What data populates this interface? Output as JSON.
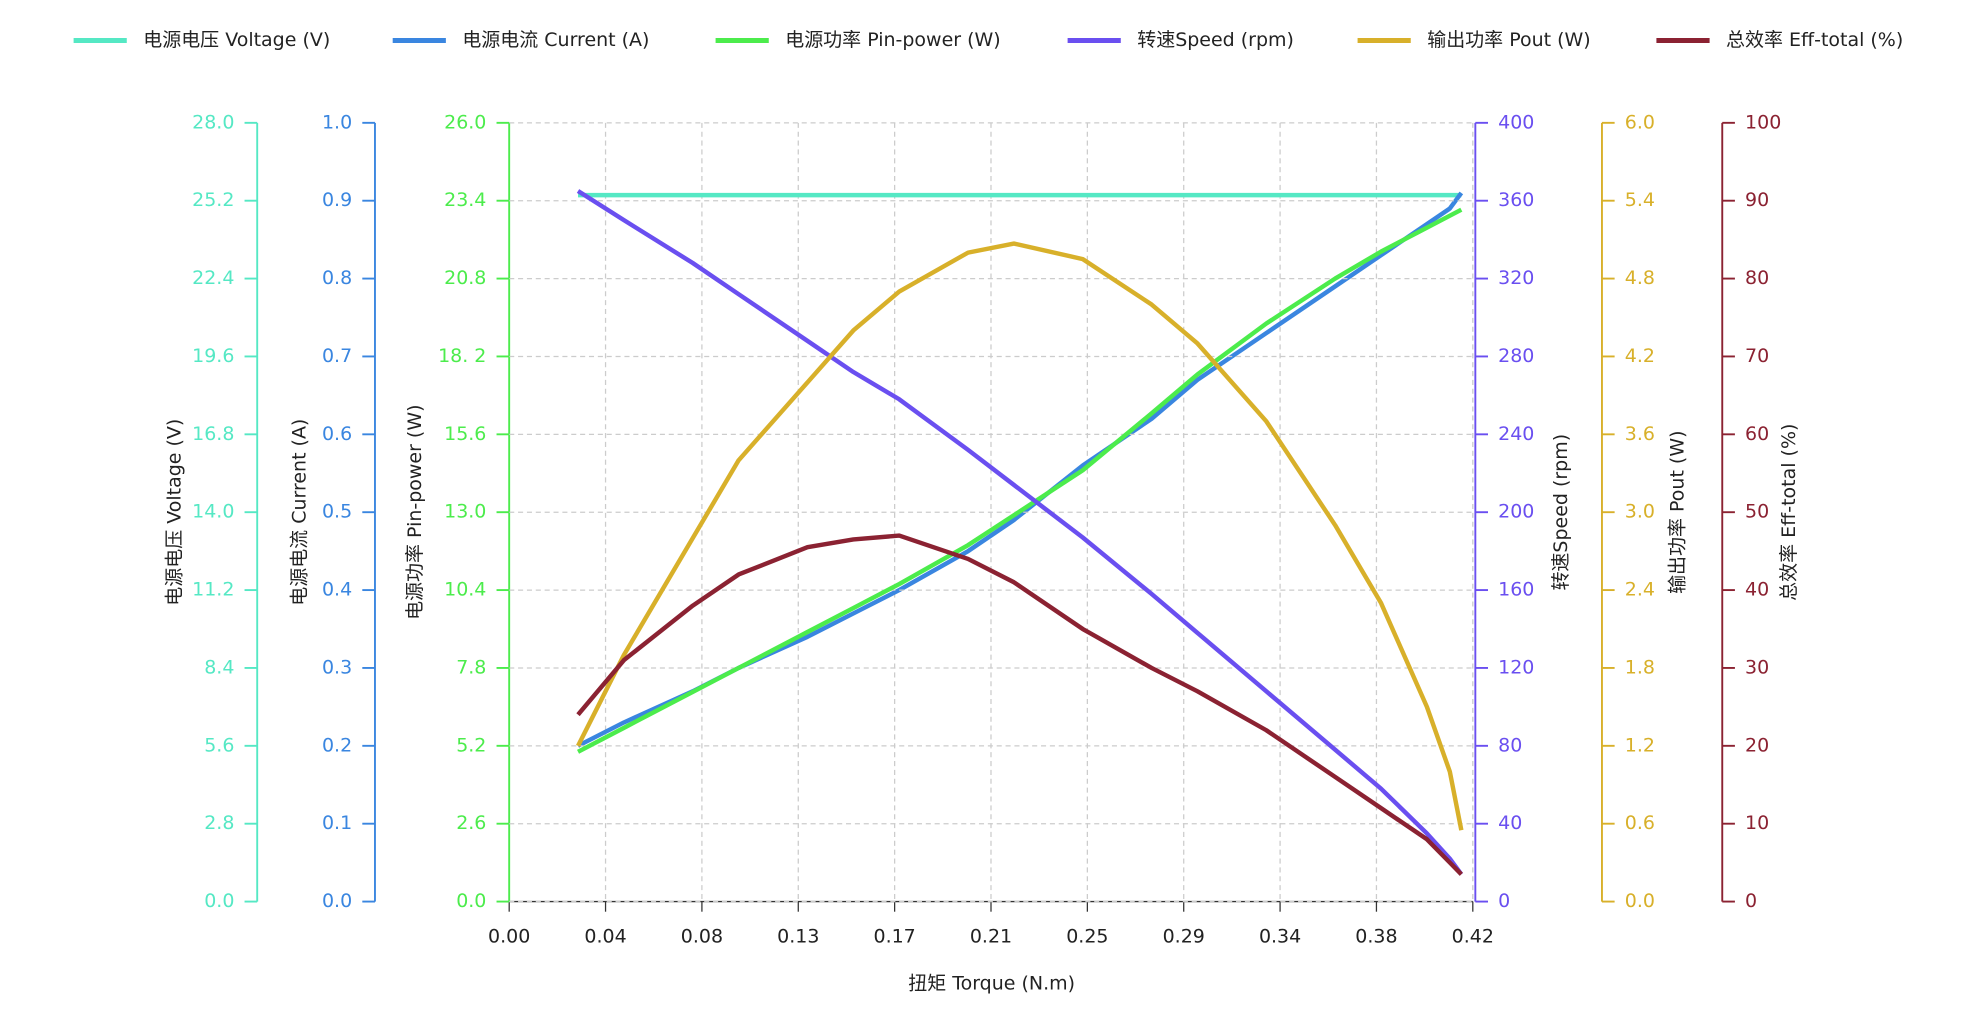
{
  "chart_data": {
    "type": "line",
    "xlabel": "扭矩 Torque (N.m)",
    "xlim": [
      0,
      0.42
    ],
    "xticks": [
      {
        "value": 0,
        "label": "0.00"
      },
      {
        "value": 0.042,
        "label": "0.04"
      },
      {
        "value": 0.084,
        "label": "0.08"
      },
      {
        "value": 0.126,
        "label": "0.13"
      },
      {
        "value": 0.168,
        "label": "0.17"
      },
      {
        "value": 0.21,
        "label": "0.21"
      },
      {
        "value": 0.252,
        "label": "0.25"
      },
      {
        "value": 0.294,
        "label": "0.29"
      },
      {
        "value": 0.336,
        "label": "0.34"
      },
      {
        "value": 0.378,
        "label": "0.38"
      },
      {
        "value": 0.42,
        "label": "0.42"
      }
    ],
    "grid": true,
    "x": [
      0.03,
      0.05,
      0.08,
      0.1,
      0.13,
      0.15,
      0.17,
      0.2,
      0.22,
      0.25,
      0.28,
      0.3,
      0.33,
      0.36,
      0.38,
      0.4,
      0.41,
      0.415
    ],
    "series": [
      {
        "name": "电源电压 Voltage (V)",
        "ylabel": "电源电压 Voltage (V)",
        "color": "#55e8c4",
        "ylim": [
          0,
          28
        ],
        "yticks": [
          {
            "value": 0,
            "label": "0.0"
          },
          2.8,
          5.6,
          8.4,
          11.2,
          {
            "value": 14,
            "label": "14.0"
          },
          16.8,
          19.6,
          22.4,
          25.2,
          {
            "value": 28,
            "label": "28.0"
          }
        ],
        "values": [
          25.4,
          25.4,
          25.4,
          25.4,
          25.4,
          25.4,
          25.4,
          25.4,
          25.4,
          25.4,
          25.4,
          25.4,
          25.4,
          25.4,
          25.4,
          25.4,
          25.4,
          25.4
        ]
      },
      {
        "name": "电源电流 Current (A)",
        "ylabel": "电源电流 Current (A)",
        "color": "#3a86e0",
        "ylim": [
          0,
          1
        ],
        "yticks": [
          {
            "value": 0,
            "label": "0.0"
          },
          0.1,
          0.2,
          0.3,
          0.4,
          0.5,
          0.6,
          0.7,
          0.8,
          0.9,
          {
            "value": 1,
            "label": "1.0"
          }
        ],
        "values": [
          0.2,
          0.23,
          0.27,
          0.3,
          0.34,
          0.37,
          0.4,
          0.45,
          0.49,
          0.56,
          0.62,
          0.67,
          0.73,
          0.79,
          0.83,
          0.87,
          0.89,
          0.91
        ]
      },
      {
        "name": "电源功率 Pin-power (W)",
        "ylabel": "电源功率 Pin-power (W)",
        "color": "#4cec4c",
        "ylim": [
          0,
          26
        ],
        "yticks": [
          {
            "value": 0,
            "label": "0.0"
          },
          2.6,
          5.2,
          7.8,
          10.4,
          {
            "value": 13,
            "label": "13.0"
          },
          15.6,
          {
            "value": 18.2,
            "label": "18. 2"
          },
          20.8,
          23.4,
          {
            "value": 26,
            "label": "26.0"
          }
        ],
        "values": [
          5.0,
          5.8,
          7.0,
          7.8,
          9.0,
          9.8,
          10.6,
          11.9,
          12.9,
          14.4,
          16.3,
          17.6,
          19.3,
          20.8,
          21.7,
          22.5,
          22.9,
          23.1
        ]
      },
      {
        "name": "转速Speed (rpm)",
        "ylabel": "转速Speed (rpm)",
        "color": "#6a4ff0",
        "ylim": [
          0,
          400
        ],
        "yticks": [
          0,
          40,
          80,
          120,
          160,
          200,
          240,
          280,
          320,
          360,
          400
        ],
        "values": [
          365,
          350,
          328,
          312,
          288,
          272,
          258,
          232,
          214,
          187,
          158,
          138,
          108,
          78,
          58,
          35,
          22,
          14
        ]
      },
      {
        "name": "输出功率 Pout (W)",
        "ylabel": "输出功率 Pout (W)",
        "color": "#d8b02a",
        "ylim": [
          0,
          6
        ],
        "yticks": [
          {
            "value": 0,
            "label": "0.0"
          },
          0.6,
          1.2,
          1.8,
          2.4,
          {
            "value": 3,
            "label": "3.0"
          },
          3.6,
          4.2,
          4.8,
          5.4,
          {
            "value": 6,
            "label": "6.0"
          }
        ],
        "values": [
          1.2,
          1.9,
          2.8,
          3.4,
          4.0,
          4.4,
          4.7,
          5.0,
          5.07,
          4.95,
          4.6,
          4.3,
          3.7,
          2.9,
          2.3,
          1.5,
          1.0,
          0.55
        ]
      },
      {
        "name": "总效率 Eff-total (%)",
        "ylabel": "总效率 Eff-total (%)",
        "color": "#8b2232",
        "ylim": [
          0,
          100
        ],
        "yticks": [
          0,
          10,
          20,
          30,
          40,
          50,
          60,
          70,
          80,
          90,
          100
        ],
        "values": [
          24,
          31,
          38,
          42,
          45.5,
          46.5,
          47,
          44,
          41,
          35,
          30,
          27,
          22,
          16,
          12,
          8,
          5,
          3.5
        ]
      }
    ]
  }
}
